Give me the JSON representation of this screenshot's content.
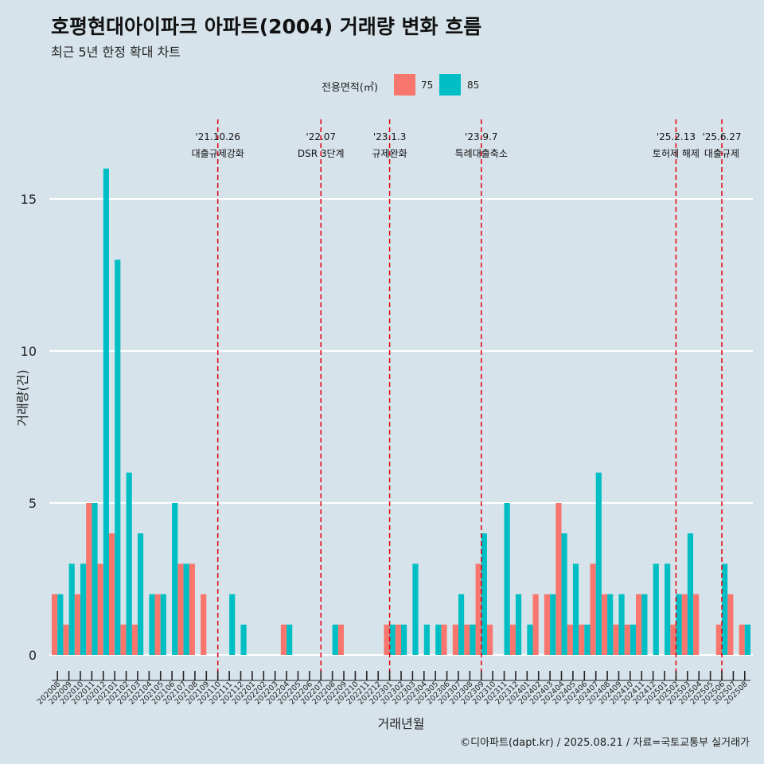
{
  "header": {
    "title": "호평현대아이파크 아파트(2004) 거래량 변화 흐름",
    "subtitle": "최근 5년 한정 확대 차트"
  },
  "legend": {
    "title": "전용면적(㎡)",
    "items": [
      {
        "label": "75",
        "color": "#f8766d"
      },
      {
        "label": "85",
        "color": "#00bfc4"
      }
    ]
  },
  "caption": "©디아파트(dapt.kr) / 2025.08.21 / 자료=국토교통부 실거래가",
  "chart_data": {
    "type": "bar",
    "title": "호평현대아이파크 아파트(2004) 거래량 변화 흐름",
    "subtitle": "최근 5년 한정 확대 차트",
    "xlabel": "거래년월",
    "ylabel": "거래량(건)",
    "ylim": [
      0,
      17
    ],
    "yticks": [
      0,
      5,
      10,
      15
    ],
    "grid": "horizontal",
    "legend_placement": "top",
    "categories": [
      "202008",
      "202009",
      "202010",
      "202011",
      "202012",
      "202101",
      "202102",
      "202103",
      "202104",
      "202105",
      "202106",
      "202107",
      "202108",
      "202109",
      "202110",
      "202111",
      "202112",
      "202201",
      "202202",
      "202203",
      "202204",
      "202205",
      "202206",
      "202207",
      "202208",
      "202209",
      "202210",
      "202211",
      "202212",
      "202301",
      "202302",
      "202303",
      "202304",
      "202305",
      "202306",
      "202307",
      "202308",
      "202309",
      "202310",
      "202311",
      "202312",
      "202401",
      "202402",
      "202403",
      "202404",
      "202405",
      "202406",
      "202407",
      "202408",
      "202409",
      "202410",
      "202411",
      "202412",
      "202501",
      "202502",
      "202503",
      "202504",
      "202505",
      "202506",
      "202507",
      "202508"
    ],
    "series": [
      {
        "name": "75",
        "color": "#f8766d",
        "values": [
          2,
          1,
          2,
          5,
          3,
          4,
          1,
          1,
          0,
          2,
          0,
          3,
          3,
          2,
          0,
          0,
          0,
          0,
          0,
          0,
          1,
          0,
          0,
          0,
          0,
          1,
          0,
          0,
          0,
          1,
          1,
          0,
          0,
          0,
          1,
          1,
          1,
          3,
          1,
          0,
          1,
          0,
          2,
          2,
          5,
          1,
          1,
          3,
          2,
          1,
          1,
          2,
          0,
          0,
          1,
          2,
          2,
          0,
          1,
          2,
          1
        ]
      },
      {
        "name": "85",
        "color": "#00bfc4",
        "values": [
          2,
          3,
          3,
          5,
          16,
          13,
          6,
          4,
          2,
          2,
          5,
          3,
          0,
          0,
          0,
          2,
          1,
          0,
          0,
          0,
          1,
          0,
          0,
          0,
          1,
          0,
          0,
          0,
          0,
          1,
          1,
          3,
          1,
          1,
          0,
          2,
          1,
          4,
          0,
          5,
          2,
          1,
          0,
          2,
          4,
          3,
          1,
          6,
          2,
          2,
          1,
          2,
          3,
          3,
          2,
          4,
          0,
          0,
          3,
          0,
          1
        ]
      }
    ],
    "events": [
      {
        "date": "'21.10.26",
        "label": "대출규제강화",
        "after": "202110"
      },
      {
        "date": "'22.07",
        "label": "DSR 3단계",
        "after": "202207"
      },
      {
        "date": "'23.1.3",
        "label": "규제완화",
        "after": "202301"
      },
      {
        "date": "'23.9.7",
        "label": "특례대출축소",
        "after": "202309"
      },
      {
        "date": "'25.2.13",
        "label": "토허제 해제",
        "after": "202502"
      },
      {
        "date": "'25.6.27",
        "label": "대출규제",
        "after": "202506"
      }
    ]
  }
}
